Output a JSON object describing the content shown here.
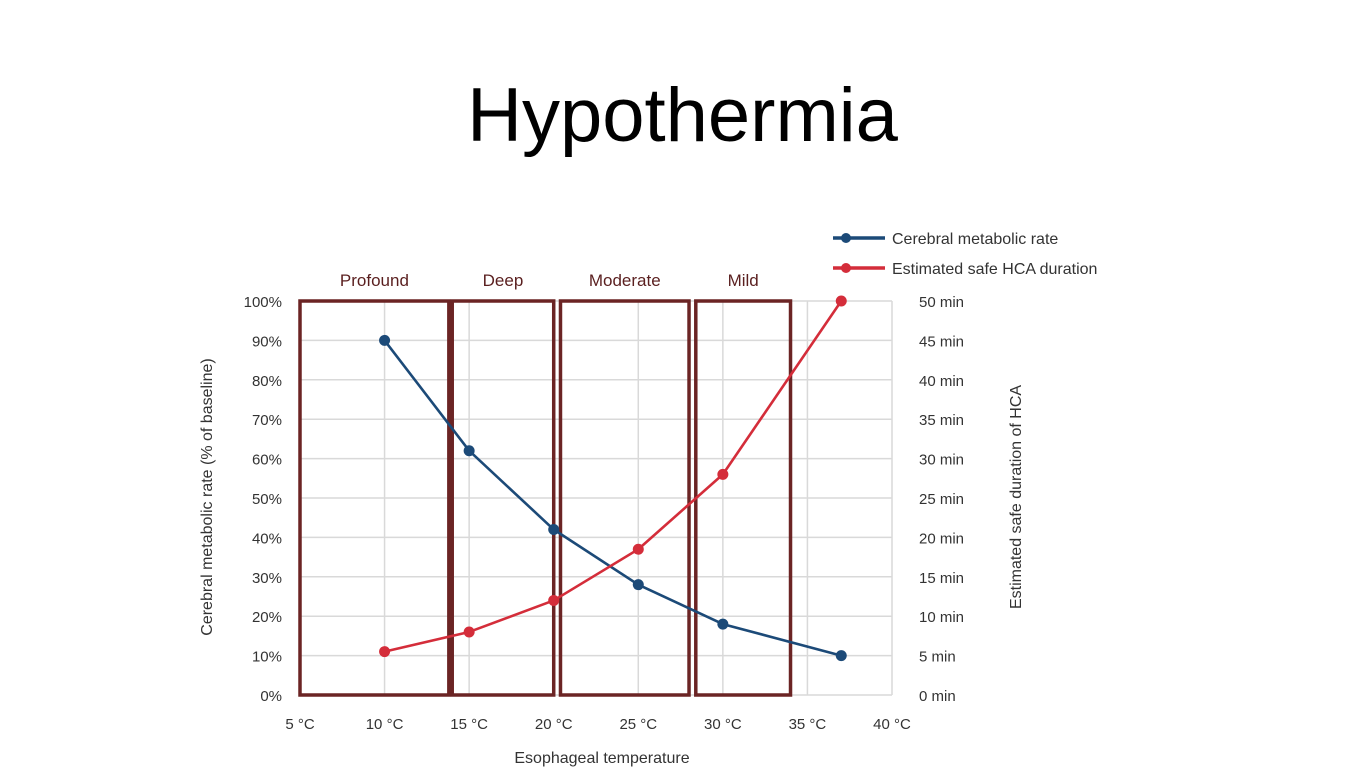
{
  "slide": {
    "title": "Hypothermia"
  },
  "chart_data": {
    "type": "line",
    "title": "",
    "xlabel": "Esophageal temperature",
    "ylabel_left": "Cerebral metabolic rate (% of baseline)",
    "ylabel_right": "Estimated safe duration of HCA",
    "xlim": [
      5,
      40
    ],
    "ylim_left": [
      0,
      100
    ],
    "ylim_right": [
      0,
      50
    ],
    "x_ticks": [
      "5 °C",
      "10 °C",
      "15 °C",
      "20 °C",
      "25 °C",
      "30 °C",
      "35 °C",
      "40 °C"
    ],
    "y_left_ticks": [
      "0%",
      "10%",
      "20%",
      "30%",
      "40%",
      "50%",
      "60%",
      "70%",
      "80%",
      "90%",
      "100%"
    ],
    "y_right_ticks": [
      "0 min",
      "5 min",
      "10 min",
      "15 min",
      "20 min",
      "25 min",
      "30 min",
      "35 min",
      "40 min",
      "45 min",
      "50 min"
    ],
    "grid": true,
    "legend_position": "top-right",
    "zones": [
      {
        "label": "Profound",
        "x_start": 5,
        "x_end": 13.8
      },
      {
        "label": "Deep",
        "x_start": 14,
        "x_end": 20
      },
      {
        "label": "Moderate",
        "x_start": 20.4,
        "x_end": 28
      },
      {
        "label": "Mild",
        "x_start": 28.4,
        "x_end": 34
      }
    ],
    "zone_color": "#6b2424",
    "series": [
      {
        "name": "Cerebral metabolic rate",
        "axis": "left",
        "color": "#1c4a78",
        "x": [
          10,
          15,
          20,
          25,
          30,
          37
        ],
        "y": [
          90,
          62,
          42,
          28,
          18,
          10
        ]
      },
      {
        "name": "Estimated safe HCA duration",
        "axis": "right",
        "color": "#d42d3a",
        "x": [
          10,
          15,
          20,
          25,
          30,
          37
        ],
        "y": [
          5.5,
          8,
          12,
          18.5,
          28,
          50
        ]
      }
    ]
  }
}
